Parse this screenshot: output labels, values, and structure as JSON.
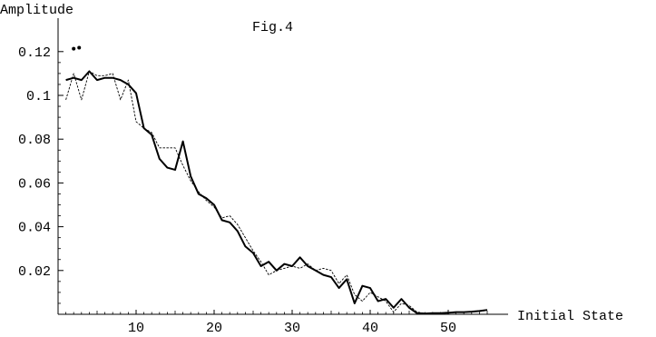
{
  "chart_data": {
    "type": "line",
    "title": "Fig.4",
    "xlabel": "Initial State",
    "ylabel": "Amplitude",
    "xlim": [
      0,
      56
    ],
    "ylim": [
      0,
      0.125
    ],
    "xticks": [
      10,
      20,
      30,
      40,
      50
    ],
    "yticks": [
      0.02,
      0.04,
      0.06,
      0.08,
      0.1,
      0.12
    ],
    "xtick_labels": [
      "10",
      "20",
      "30",
      "40",
      "50"
    ],
    "ytick_labels": [
      "0.02",
      "0.04",
      "0.06",
      "0.08",
      "0.1",
      "0.12"
    ],
    "grid": false,
    "legend": "none",
    "series": [
      {
        "style": "solid-thick",
        "x": [
          1,
          2,
          3,
          4,
          5,
          6,
          7,
          8,
          9,
          10,
          11,
          12,
          13,
          14,
          15,
          16,
          17,
          18,
          19,
          20,
          21,
          22,
          23,
          24,
          25,
          26,
          27,
          28,
          29,
          30,
          31,
          32,
          33,
          34,
          35,
          36,
          37,
          38,
          39,
          40,
          41,
          42,
          43,
          44,
          45,
          46,
          47,
          48,
          49,
          50,
          51,
          52,
          53,
          54,
          55
        ],
        "y": [
          0.107,
          0.108,
          0.107,
          0.111,
          0.107,
          0.108,
          0.108,
          0.107,
          0.105,
          0.101,
          0.085,
          0.082,
          0.071,
          0.067,
          0.066,
          0.079,
          0.063,
          0.055,
          0.053,
          0.05,
          0.043,
          0.042,
          0.038,
          0.031,
          0.028,
          0.022,
          0.024,
          0.02,
          0.023,
          0.022,
          0.026,
          0.022,
          0.02,
          0.018,
          0.017,
          0.012,
          0.016,
          0.005,
          0.013,
          0.012,
          0.006,
          0.007,
          0.003,
          0.007,
          0.003,
          0.0005,
          0.0003,
          0.0005,
          0.0005,
          0.0007,
          0.001,
          0.001,
          0.0012,
          0.0015,
          0.002
        ]
      },
      {
        "style": "dashed-thin",
        "x": [
          1,
          2,
          3,
          4,
          5,
          6,
          7,
          8,
          9,
          10,
          11,
          12,
          13,
          14,
          15,
          16,
          17,
          18,
          19,
          20,
          21,
          22,
          23,
          24,
          25,
          26,
          27,
          28,
          29,
          30,
          31,
          32,
          33,
          34,
          35,
          36,
          37,
          38,
          39,
          40,
          41,
          42,
          43,
          44,
          45,
          46,
          47,
          48,
          49,
          50,
          51,
          52,
          53,
          54,
          55
        ],
        "y": [
          0.098,
          0.11,
          0.098,
          0.111,
          0.109,
          0.109,
          0.11,
          0.098,
          0.107,
          0.088,
          0.085,
          0.083,
          0.076,
          0.076,
          0.076,
          0.068,
          0.061,
          0.056,
          0.052,
          0.049,
          0.044,
          0.045,
          0.041,
          0.035,
          0.029,
          0.024,
          0.018,
          0.02,
          0.021,
          0.022,
          0.021,
          0.023,
          0.02,
          0.021,
          0.02,
          0.014,
          0.018,
          0.009,
          0.006,
          0.01,
          0.008,
          0.006,
          0.001,
          0.005,
          0.004,
          0.001,
          0.0005,
          0.0005,
          0.0005,
          0.0005,
          0.0008,
          0.001,
          0.001,
          0.0013,
          0.0018
        ]
      }
    ],
    "points": [
      {
        "x": 2.0,
        "y": 0.1213
      },
      {
        "x": 2.7,
        "y": 0.1218
      }
    ]
  }
}
